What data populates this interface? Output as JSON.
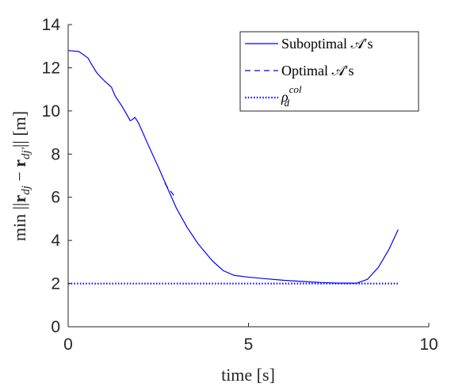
{
  "chart_data": {
    "type": "line",
    "xlabel": "time [s]",
    "ylabel": "min ||r_dj − r_dj'|| [m]",
    "xlim": [
      0,
      10
    ],
    "ylim": [
      0,
      14
    ],
    "xticks": [
      0,
      5,
      10
    ],
    "yticks": [
      0,
      2,
      4,
      6,
      8,
      10,
      12,
      14
    ],
    "grid": false,
    "legend_placement": "top-right",
    "series": [
      {
        "name": "Suboptimal 𝒜′s",
        "style": "solid",
        "color": "#0000ff",
        "x": [
          0,
          0.3,
          0.55,
          0.65,
          0.8,
          1.0,
          1.2,
          1.3,
          1.5,
          1.72,
          1.78,
          1.85,
          1.95,
          2.2,
          2.5,
          2.8,
          3.0,
          3.3,
          3.6,
          4.0,
          4.3,
          4.6,
          5.0,
          5.5,
          6.0,
          6.5,
          7.0,
          7.5,
          8.0,
          8.3,
          8.6,
          8.9,
          9.15
        ],
        "y": [
          12.8,
          12.75,
          12.45,
          12.15,
          11.75,
          11.4,
          11.1,
          10.7,
          10.2,
          9.55,
          9.6,
          9.7,
          9.45,
          8.5,
          7.4,
          6.25,
          5.5,
          4.6,
          3.85,
          3.05,
          2.6,
          2.38,
          2.3,
          2.22,
          2.15,
          2.1,
          2.05,
          2.02,
          2.02,
          2.2,
          2.75,
          3.6,
          4.5
        ]
      },
      {
        "name": "Optimal 𝒜′s",
        "style": "dashed",
        "color": "#0000ff",
        "x": [
          2.68,
          2.78,
          2.88,
          2.98
        ],
        "y": [
          6.65,
          6.4,
          6.2,
          5.95
        ]
      },
      {
        "name": "ρ_d^col",
        "style": "dotted",
        "color": "#0000ff",
        "x": [
          0,
          9.15
        ],
        "y": [
          2,
          2
        ]
      }
    ]
  }
}
